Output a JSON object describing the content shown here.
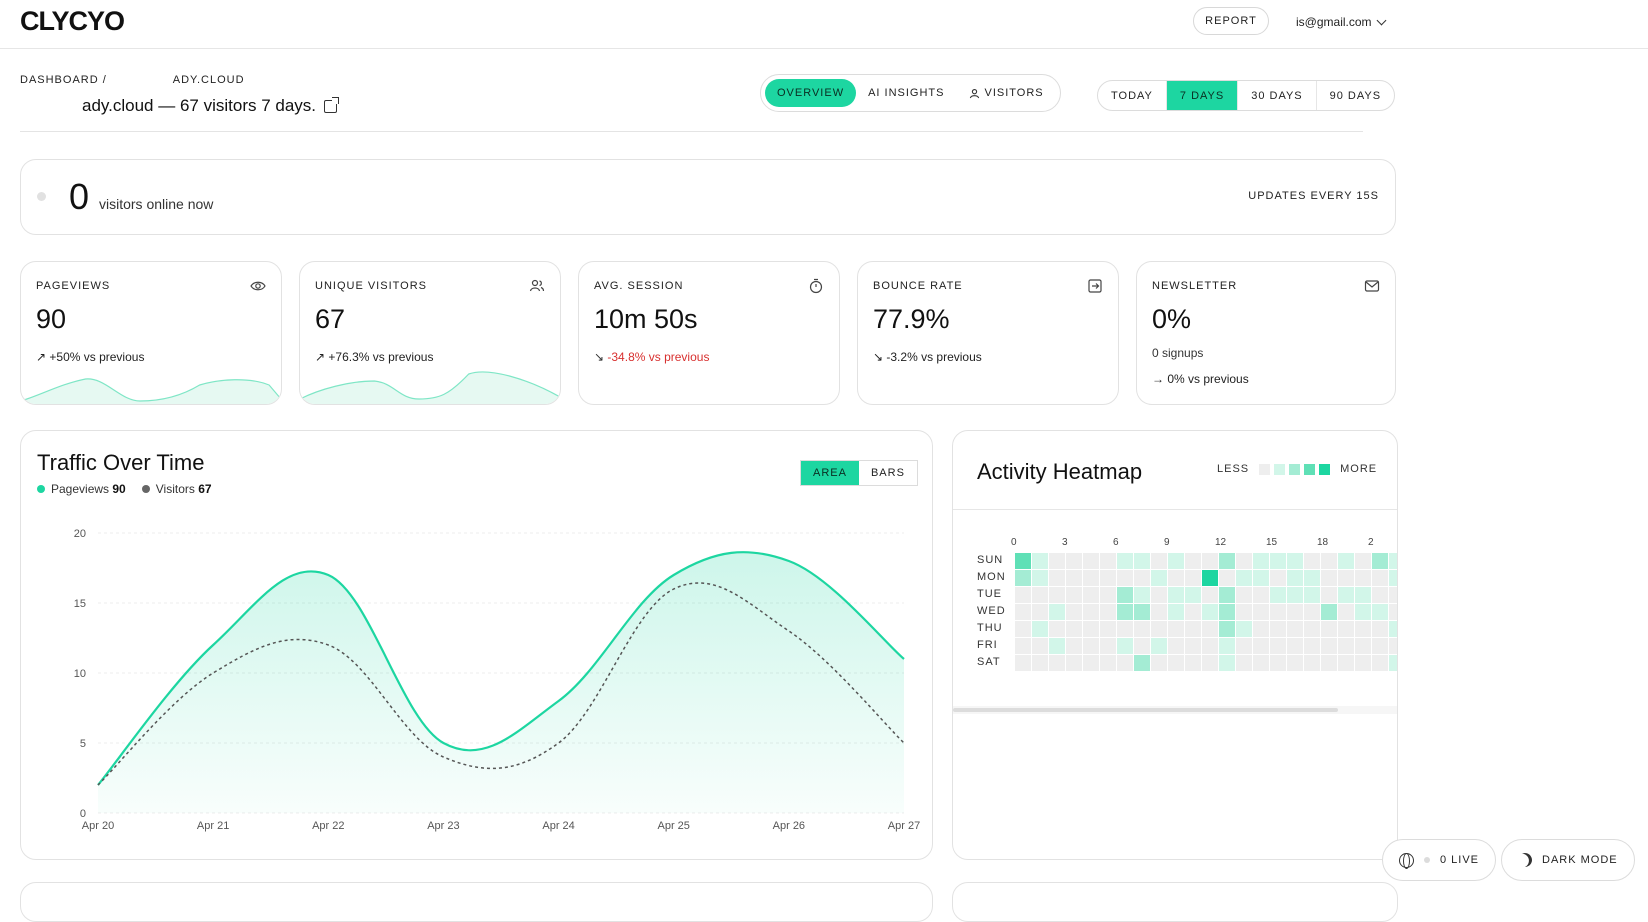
{
  "header": {
    "logo": "CLYCYO",
    "report_label": "REPORT",
    "user_email": "is@gmail.com"
  },
  "breadcrumb": {
    "root": "DASHBOARD",
    "separator": "/",
    "site": "ADY.CLOUD"
  },
  "page": {
    "title": "ady.cloud — 67 visitors 7 days."
  },
  "view_tabs": [
    {
      "label": "OVERVIEW",
      "active": true
    },
    {
      "label": "AI INSIGHTS",
      "active": false
    },
    {
      "label": "VISITORS",
      "active": false,
      "icon": "user-icon"
    }
  ],
  "range_tabs": [
    {
      "label": "TODAY",
      "active": false
    },
    {
      "label": "7 DAYS",
      "active": true
    },
    {
      "label": "30 DAYS",
      "active": false
    },
    {
      "label": "90 DAYS",
      "active": false
    }
  ],
  "live": {
    "count": "0",
    "text": "visitors online now",
    "updates": "UPDATES EVERY 15S"
  },
  "stats": [
    {
      "label": "PAGEVIEWS",
      "icon": "eye-icon",
      "value": "90",
      "delta": "+50% vs previous",
      "trend": "up"
    },
    {
      "label": "UNIQUE VISITORS",
      "icon": "users-icon",
      "value": "67",
      "delta": "+76.3% vs previous",
      "trend": "up"
    },
    {
      "label": "AVG. SESSION",
      "icon": "stopwatch-icon",
      "value": "10m 50s",
      "delta": "-34.8% vs previous",
      "trend": "down-bad"
    },
    {
      "label": "BOUNCE RATE",
      "icon": "exit-icon",
      "value": "77.9%",
      "delta": "-3.2% vs previous",
      "trend": "down"
    },
    {
      "label": "NEWSLETTER",
      "icon": "mail-icon",
      "value": "0%",
      "sub": "0 signups",
      "delta": "→ 0% vs previous",
      "trend": "flat"
    }
  ],
  "traffic": {
    "title": "Traffic Over Time",
    "legend_pageviews_label": "Pageviews",
    "legend_pageviews_value": "90",
    "legend_visitors_label": "Visitors",
    "legend_visitors_value": "67",
    "toggle": [
      {
        "label": "AREA",
        "active": true
      },
      {
        "label": "BARS",
        "active": false
      }
    ]
  },
  "chart_data": {
    "type": "area",
    "categories": [
      "Apr 20",
      "Apr 21",
      "Apr 22",
      "Apr 23",
      "Apr 24",
      "Apr 25",
      "Apr 26",
      "Apr 27"
    ],
    "series": [
      {
        "name": "Pageviews",
        "values": [
          2,
          12,
          17,
          5,
          8,
          17,
          18,
          11
        ],
        "color": "#1dd6a1",
        "style": "solid-area"
      },
      {
        "name": "Visitors",
        "values": [
          2,
          10,
          12,
          4,
          5,
          16,
          13,
          5
        ],
        "color": "#555555",
        "style": "dashed"
      }
    ],
    "yticks": [
      0,
      5,
      10,
      15,
      20
    ],
    "ylim": [
      0,
      20
    ],
    "grid": true
  },
  "heatmap": {
    "title": "Activity Heatmap",
    "less_label": "LESS",
    "more_label": "MORE",
    "hour_labels": [
      "0",
      "3",
      "6",
      "9",
      "12",
      "15",
      "18",
      "2"
    ],
    "days": [
      "SUN",
      "MON",
      "TUE",
      "WED",
      "THU",
      "FRI",
      "SAT"
    ],
    "scale": [
      "#eeeeee",
      "#d2f6e9",
      "#a4ecd4",
      "#5fe0b6",
      "#1dd6a1"
    ],
    "cells": [
      [
        3,
        1,
        0,
        0,
        0,
        0,
        1,
        1,
        0,
        1,
        0,
        0,
        2,
        0,
        1,
        1,
        1,
        0,
        0,
        1,
        0,
        2,
        1,
        0
      ],
      [
        2,
        1,
        0,
        0,
        0,
        0,
        0,
        0,
        1,
        0,
        0,
        4,
        0,
        1,
        1,
        0,
        1,
        1,
        0,
        0,
        0,
        0,
        1,
        0
      ],
      [
        0,
        0,
        0,
        0,
        0,
        0,
        2,
        1,
        0,
        1,
        1,
        0,
        2,
        0,
        0,
        1,
        1,
        1,
        0,
        1,
        1,
        0,
        0,
        0
      ],
      [
        0,
        0,
        1,
        0,
        0,
        0,
        2,
        2,
        0,
        1,
        0,
        1,
        2,
        0,
        0,
        0,
        0,
        0,
        2,
        0,
        1,
        1,
        0,
        0
      ],
      [
        0,
        1,
        0,
        0,
        0,
        0,
        0,
        0,
        0,
        0,
        0,
        0,
        2,
        1,
        0,
        0,
        0,
        0,
        0,
        0,
        0,
        0,
        1,
        0
      ],
      [
        0,
        0,
        1,
        0,
        0,
        0,
        1,
        0,
        1,
        0,
        0,
        0,
        1,
        0,
        0,
        0,
        0,
        0,
        0,
        0,
        0,
        0,
        0,
        1
      ],
      [
        0,
        0,
        0,
        0,
        0,
        0,
        0,
        2,
        0,
        0,
        0,
        0,
        1,
        0,
        0,
        0,
        0,
        0,
        0,
        0,
        0,
        0,
        1,
        0
      ]
    ]
  },
  "floating": {
    "live_label": "0 LIVE",
    "dark_mode_label": "DARK MODE"
  }
}
